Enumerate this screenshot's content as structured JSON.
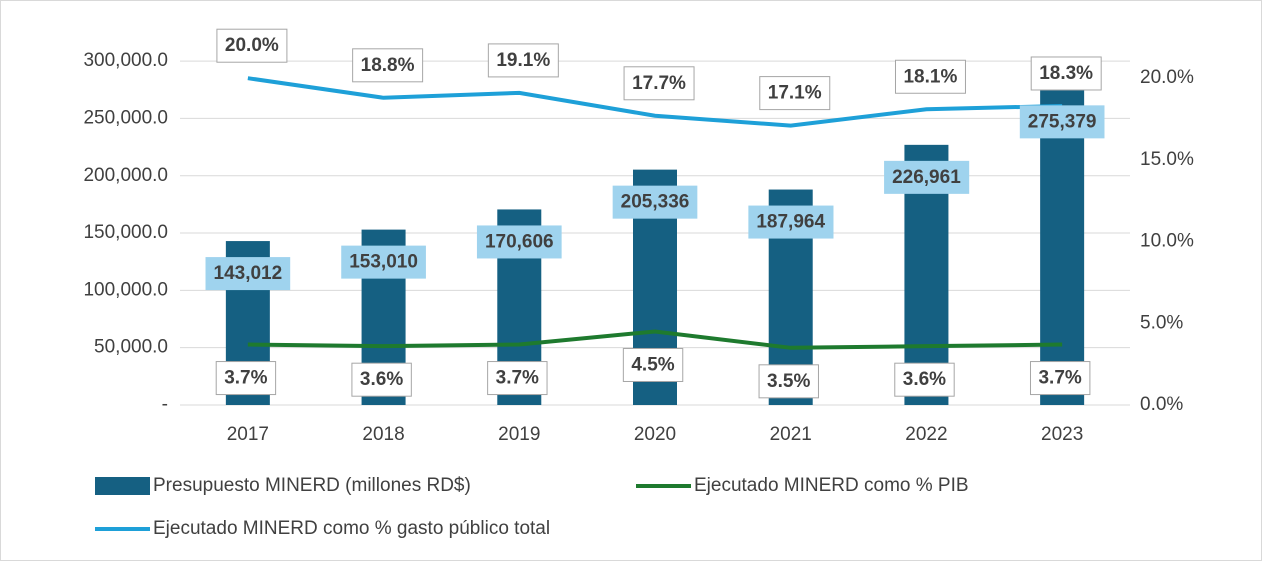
{
  "chart_data": {
    "type": "bar",
    "categories": [
      "2017",
      "2018",
      "2019",
      "2020",
      "2021",
      "2022",
      "2023"
    ],
    "series": [
      {
        "name": "Presupuesto MINERD (millones RD$)",
        "type": "bar",
        "color": "#156082",
        "values": [
          143012,
          153010,
          170606,
          205336,
          187964,
          226961,
          275379
        ],
        "value_labels": [
          "143,012",
          "153,010",
          "170,606",
          "205,336",
          "187,964",
          "226,961",
          "275,379"
        ]
      },
      {
        "name": "Ejecutado MINERD como % PIB",
        "type": "line",
        "axis": "y2",
        "color": "#1e7a2e",
        "values": [
          3.7,
          3.6,
          3.7,
          4.5,
          3.5,
          3.6,
          3.7
        ],
        "value_labels": [
          "3.7%",
          "3.6%",
          "3.7%",
          "4.5%",
          "3.5%",
          "3.6%",
          "3.7%"
        ]
      },
      {
        "name": "Ejecutado MINERD como % gasto público total",
        "type": "line",
        "axis": "y2",
        "color": "#1ea0d8",
        "values": [
          20.0,
          18.8,
          19.1,
          17.7,
          17.1,
          18.1,
          18.3
        ],
        "value_labels": [
          "20.0%",
          "18.8%",
          "19.1%",
          "17.7%",
          "17.1%",
          "18.1%",
          "18.3%"
        ]
      }
    ],
    "ylim": [
      0,
      335000
    ],
    "yticks": [
      {
        "value": 0,
        "label": "-"
      },
      {
        "value": 50000,
        "label": "50,000.0"
      },
      {
        "value": 100000,
        "label": "100,000.0"
      },
      {
        "value": 150000,
        "label": "150,000.0"
      },
      {
        "value": 200000,
        "label": "200,000.0"
      },
      {
        "value": 250000,
        "label": "250,000.0"
      },
      {
        "value": 300000,
        "label": "300,000.0"
      }
    ],
    "y2lim": [
      0,
      23.5
    ],
    "y2ticks": [
      {
        "value": 0,
        "label": "0.0%"
      },
      {
        "value": 5,
        "label": "5.0%"
      },
      {
        "value": 10,
        "label": "10.0%"
      },
      {
        "value": 15,
        "label": "15.0%"
      },
      {
        "value": 20,
        "label": "20.0%"
      }
    ],
    "grid": true
  }
}
